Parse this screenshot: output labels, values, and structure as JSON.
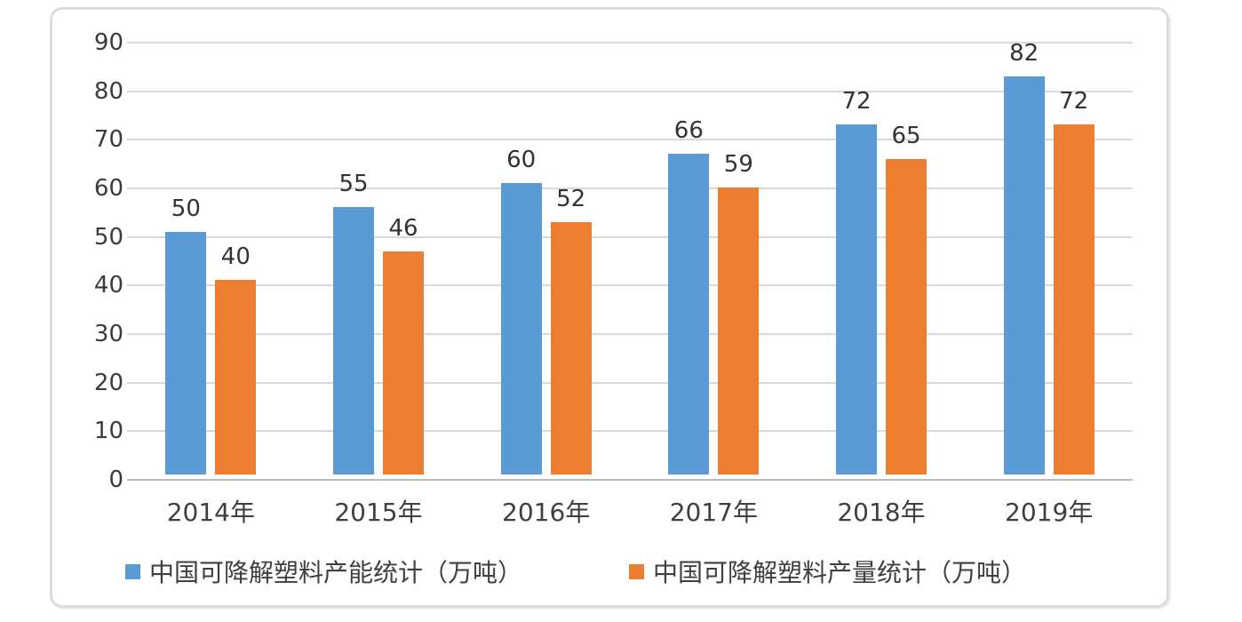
{
  "chart_data": {
    "type": "bar",
    "title": "",
    "categories": [
      "2014年",
      "2015年",
      "2016年",
      "2017年",
      "2018年",
      "2019年"
    ],
    "series": [
      {
        "name": "中国可降解塑料产能统计（万吨）",
        "color": "#5b9bd5",
        "values": [
          50,
          55,
          60,
          66,
          72,
          82
        ]
      },
      {
        "name": "中国可降解塑料产量统计（万吨）",
        "color": "#ed7d31",
        "values": [
          40,
          46,
          52,
          59,
          65,
          72
        ]
      }
    ],
    "xlabel": "",
    "ylabel": "",
    "ylim": [
      0,
      90
    ],
    "yticks": [
      0,
      10,
      20,
      30,
      40,
      50,
      60,
      70,
      80,
      90
    ],
    "grid": "horizontal",
    "data_labels": true,
    "legend_position": "bottom",
    "styles": {
      "gridline_color": "#d9d9d9",
      "axis_line_color": "#bfbfbf",
      "label_color": "#3b3b3b",
      "frame_border_color": "#dcdcdc",
      "background": "#ffffff"
    }
  }
}
